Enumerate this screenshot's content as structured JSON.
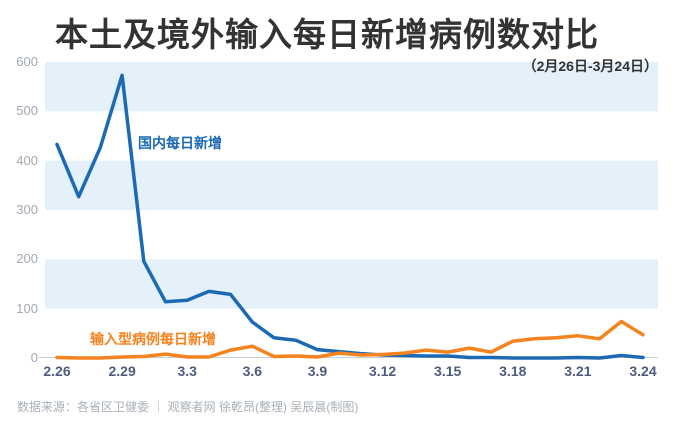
{
  "title": "本土及境外输入每日新增病例数对比",
  "subtitle": "（2月26日-3月24日）",
  "footer": {
    "text": "数据来源：各省区卫健委 ｜ 观察者网 徐乾昂(整理) 吴辰晨(制图)"
  },
  "colors": {
    "title": "#333333",
    "subtitle": "#333333",
    "y_label": "#a3a9b0",
    "x_label": "#4e5c7e",
    "footer": "#a9b0b8",
    "domestic_line": "#1b6ab3",
    "imported_line": "#f5831f",
    "band_fill": "#e4f1fb",
    "axis_line": "#c9ced4"
  },
  "chart_data": {
    "type": "line",
    "title": "本土及境外输入每日新增病例数对比",
    "subtitle": "（2月26日-3月24日）",
    "x": [
      "2.26",
      "2.27",
      "2.28",
      "2.29",
      "3.1",
      "3.2",
      "3.3",
      "3.4",
      "3.5",
      "3.6",
      "3.7",
      "3.8",
      "3.9",
      "3.10",
      "3.11",
      "3.12",
      "3.13",
      "3.14",
      "3.15",
      "3.16",
      "3.17",
      "3.18",
      "3.19",
      "3.20",
      "3.21",
      "3.22",
      "3.23",
      "3.24"
    ],
    "x_tick_indices": [
      0,
      3,
      6,
      9,
      12,
      15,
      18,
      21,
      24,
      27
    ],
    "x_tick_labels": [
      "2.26",
      "2.29",
      "3.3",
      "3.6",
      "3.9",
      "3.12",
      "3.15",
      "3.18",
      "3.21",
      "3.24"
    ],
    "series": [
      {
        "name": "国内每日新增",
        "color": "#1b6ab3",
        "values": [
          433,
          327,
          427,
          573,
          196,
          114,
          117,
          135,
          129,
          73,
          41,
          36,
          17,
          13,
          9,
          6,
          5,
          4,
          4,
          1,
          1,
          0,
          0,
          0,
          1,
          0,
          5,
          1
        ]
      },
      {
        "name": "输入型病例每日新增",
        "color": "#f5831f",
        "values": [
          1,
          0,
          0,
          2,
          3,
          8,
          2,
          2,
          16,
          24,
          3,
          4,
          2,
          10,
          6,
          7,
          10,
          16,
          12,
          20,
          12,
          34,
          39,
          41,
          45,
          39,
          74,
          47
        ]
      }
    ],
    "ylim": [
      0,
      600
    ],
    "y_ticks": [
      0,
      100,
      200,
      300,
      400,
      500,
      600
    ],
    "bands": [
      [
        500,
        600
      ],
      [
        300,
        400
      ],
      [
        100,
        200
      ]
    ],
    "band_fill": "#e4f1fb",
    "axis_color": "#c9ced4",
    "grid": "striped-bands",
    "legend_position": "inline-annotations"
  }
}
